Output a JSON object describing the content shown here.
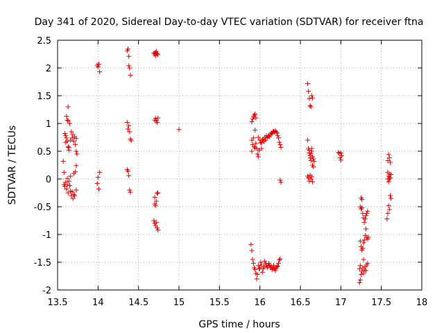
{
  "chart_data": {
    "type": "scatter",
    "title": "Day 341 of 2020, Sidereal Day-to-day VTEC variation (SDTVAR) for receiver ftna",
    "xlabel": "GPS time / hours",
    "ylabel": "SDTVAR / TECUs",
    "xlim": [
      13.5,
      18
    ],
    "ylim": [
      -2,
      2.5
    ],
    "xticks": [
      13.5,
      14,
      14.5,
      15,
      15.5,
      16,
      16.5,
      17,
      17.5,
      18
    ],
    "xtick_labels": [
      "13.5",
      "14",
      "14.5",
      "15",
      "15.5",
      "16",
      "16.5",
      "17",
      "17.5",
      "18"
    ],
    "yticks": [
      -2,
      -1.5,
      -1,
      -0.5,
      0,
      0.5,
      1,
      1.5,
      2,
      2.5
    ],
    "ytick_labels": [
      "-2",
      "-1.5",
      "-1",
      "-0.5",
      "0",
      "0.5",
      "1",
      "1.5",
      "2",
      "2.5"
    ],
    "grid": true,
    "marker": "+",
    "color": "#e00000",
    "series": [
      {
        "name": "ftna",
        "points": [
          [
            13.57,
            0.32
          ],
          [
            13.58,
            0.12
          ],
          [
            13.59,
            0.82
          ],
          [
            13.6,
            0.78
          ],
          [
            13.6,
            0.66
          ],
          [
            13.61,
            0.74
          ],
          [
            13.61,
            1.13
          ],
          [
            13.62,
            1.06
          ],
          [
            13.62,
            0.68
          ],
          [
            13.63,
            1.3
          ],
          [
            13.63,
            1.05
          ],
          [
            13.63,
            0.58
          ],
          [
            13.64,
            0.52
          ],
          [
            13.64,
            0.57
          ],
          [
            13.65,
            1.0
          ],
          [
            13.66,
            0.7
          ],
          [
            13.67,
            0.85
          ],
          [
            13.68,
            0.74
          ],
          [
            13.69,
            0.8
          ],
          [
            13.7,
            0.68
          ],
          [
            13.71,
            0.76
          ],
          [
            13.72,
            0.62
          ],
          [
            13.73,
            0.73
          ],
          [
            13.73,
            0.5
          ],
          [
            13.74,
            0.45
          ],
          [
            13.58,
            -0.1
          ],
          [
            13.59,
            -0.13
          ],
          [
            13.6,
            -0.06
          ],
          [
            13.61,
            -0.18
          ],
          [
            13.62,
            -0.1
          ],
          [
            13.62,
            0.01
          ],
          [
            13.63,
            -0.25
          ],
          [
            13.64,
            -0.04
          ],
          [
            13.65,
            -0.12
          ],
          [
            13.66,
            -0.22
          ],
          [
            13.66,
            0.05
          ],
          [
            13.67,
            -0.3
          ],
          [
            13.68,
            -0.23
          ],
          [
            13.69,
            -0.35
          ],
          [
            13.7,
            -0.28
          ],
          [
            13.7,
            0.1
          ],
          [
            13.71,
            -0.3
          ],
          [
            13.72,
            0.13
          ],
          [
            13.73,
            0.24
          ],
          [
            13.73,
            -0.2
          ],
          [
            13.99,
            2.05
          ],
          [
            14.0,
            2.02
          ],
          [
            14.01,
            2.07
          ],
          [
            14.02,
            1.93
          ],
          [
            13.99,
            -0.08
          ],
          [
            14.0,
            0.03
          ],
          [
            14.01,
            -0.18
          ],
          [
            14.02,
            0.12
          ],
          [
            14.36,
            2.31
          ],
          [
            14.37,
            2.34
          ],
          [
            14.38,
            2.21
          ],
          [
            14.38,
            2.04
          ],
          [
            14.39,
            2.0
          ],
          [
            14.4,
            1.87
          ],
          [
            14.36,
            1.02
          ],
          [
            14.37,
            0.9
          ],
          [
            14.38,
            0.96
          ],
          [
            14.39,
            0.85
          ],
          [
            14.4,
            0.72
          ],
          [
            14.41,
            0.69
          ],
          [
            14.36,
            0.17
          ],
          [
            14.37,
            0.14
          ],
          [
            14.38,
            0.06
          ],
          [
            14.39,
            -0.2
          ],
          [
            14.4,
            -0.24
          ],
          [
            14.69,
            2.27
          ],
          [
            14.7,
            2.25
          ],
          [
            14.71,
            2.22
          ],
          [
            14.71,
            2.28
          ],
          [
            14.72,
            2.3
          ],
          [
            14.73,
            2.26
          ],
          [
            14.74,
            2.24
          ],
          [
            14.7,
            1.06
          ],
          [
            14.71,
            1.09
          ],
          [
            14.72,
            1.05
          ],
          [
            14.73,
            1.02
          ],
          [
            14.74,
            1.1
          ],
          [
            14.7,
            -0.33
          ],
          [
            14.7,
            -0.45
          ],
          [
            14.71,
            -0.48
          ],
          [
            14.72,
            -0.4
          ],
          [
            14.73,
            -0.26
          ],
          [
            14.74,
            -0.25
          ],
          [
            14.69,
            -0.75
          ],
          [
            14.7,
            -0.8
          ],
          [
            14.71,
            -0.84
          ],
          [
            14.72,
            -0.78
          ],
          [
            14.73,
            -0.88
          ],
          [
            14.74,
            -0.92
          ],
          [
            15.0,
            0.89
          ],
          [
            15.9,
            1.03
          ],
          [
            15.91,
            1.08
          ],
          [
            15.92,
            1.12
          ],
          [
            15.93,
            1.15
          ],
          [
            15.94,
            1.17
          ],
          [
            15.95,
            1.1
          ],
          [
            15.9,
            0.7
          ],
          [
            15.91,
            0.62
          ],
          [
            15.92,
            0.74
          ],
          [
            15.93,
            0.58
          ],
          [
            15.94,
            0.56
          ],
          [
            15.95,
            0.64
          ],
          [
            15.96,
            0.55
          ],
          [
            15.97,
            0.45
          ],
          [
            15.98,
            0.4
          ],
          [
            15.99,
            0.52
          ],
          [
            16.0,
            0.7
          ],
          [
            16.01,
            0.65
          ],
          [
            16.02,
            0.66
          ],
          [
            16.03,
            0.7
          ],
          [
            16.04,
            0.72
          ],
          [
            16.05,
            0.68
          ],
          [
            16.06,
            0.75
          ],
          [
            16.07,
            0.7
          ],
          [
            16.08,
            0.78
          ],
          [
            16.09,
            0.74
          ],
          [
            16.1,
            0.77
          ],
          [
            16.11,
            0.78
          ],
          [
            16.12,
            0.76
          ],
          [
            16.13,
            0.8
          ],
          [
            16.14,
            0.83
          ],
          [
            16.15,
            0.82
          ],
          [
            16.16,
            0.85
          ],
          [
            16.17,
            0.86
          ],
          [
            16.18,
            0.84
          ],
          [
            16.19,
            0.87
          ],
          [
            16.2,
            0.85
          ],
          [
            16.21,
            0.83
          ],
          [
            16.22,
            0.78
          ],
          [
            16.23,
            0.74
          ],
          [
            16.24,
            0.66
          ],
          [
            16.25,
            0.62
          ],
          [
            16.26,
            0.57
          ],
          [
            16.25,
            -0.02
          ],
          [
            16.26,
            -0.06
          ],
          [
            15.94,
            0.88
          ],
          [
            15.98,
            0.75
          ],
          [
            16.02,
            0.55
          ],
          [
            15.9,
            0.5
          ],
          [
            15.89,
            -1.18
          ],
          [
            15.9,
            -1.29
          ],
          [
            15.91,
            -1.45
          ],
          [
            15.92,
            -1.52
          ],
          [
            15.93,
            -1.6
          ],
          [
            15.94,
            -1.63
          ],
          [
            15.95,
            -1.7
          ],
          [
            15.96,
            -1.8
          ],
          [
            15.97,
            -1.72
          ],
          [
            15.98,
            -1.56
          ],
          [
            15.99,
            -1.62
          ],
          [
            16.0,
            -1.6
          ],
          [
            16.01,
            -1.5
          ],
          [
            16.02,
            -1.55
          ],
          [
            16.03,
            -1.68
          ],
          [
            16.04,
            -1.62
          ],
          [
            16.05,
            -1.58
          ],
          [
            16.06,
            -1.48
          ],
          [
            16.07,
            -1.52
          ],
          [
            16.08,
            -1.55
          ],
          [
            16.09,
            -1.6
          ],
          [
            16.1,
            -1.57
          ],
          [
            16.11,
            -1.52
          ],
          [
            16.12,
            -1.55
          ],
          [
            16.13,
            -1.6
          ],
          [
            16.14,
            -1.58
          ],
          [
            16.15,
            -1.63
          ],
          [
            16.16,
            -1.61
          ],
          [
            16.17,
            -1.56
          ],
          [
            16.18,
            -1.62
          ],
          [
            16.19,
            -1.65
          ],
          [
            16.2,
            -1.6
          ],
          [
            16.21,
            -1.58
          ],
          [
            16.22,
            -1.57
          ],
          [
            16.23,
            -1.52
          ],
          [
            16.24,
            -1.46
          ],
          [
            16.25,
            -1.44
          ],
          [
            16.59,
            1.72
          ],
          [
            16.6,
            1.58
          ],
          [
            16.61,
            1.45
          ],
          [
            16.62,
            1.32
          ],
          [
            16.63,
            1.3
          ],
          [
            16.64,
            1.5
          ],
          [
            16.65,
            1.46
          ],
          [
            16.59,
            0.7
          ],
          [
            16.6,
            0.55
          ],
          [
            16.61,
            0.52
          ],
          [
            16.61,
            0.47
          ],
          [
            16.62,
            0.42
          ],
          [
            16.62,
            0.38
          ],
          [
            16.63,
            0.33
          ],
          [
            16.63,
            0.46
          ],
          [
            16.64,
            0.55
          ],
          [
            16.64,
            0.5
          ],
          [
            16.65,
            0.4
          ],
          [
            16.65,
            0.25
          ],
          [
            16.66,
            0.22
          ],
          [
            16.66,
            0.36
          ],
          [
            16.67,
            0.32
          ],
          [
            16.59,
            0.05
          ],
          [
            16.6,
            0.02
          ],
          [
            16.61,
            -0.04
          ],
          [
            16.62,
            0.07
          ],
          [
            16.63,
            0.0
          ],
          [
            16.64,
            0.04
          ],
          [
            16.65,
            -0.05
          ],
          [
            16.97,
            0.48
          ],
          [
            16.98,
            0.46
          ],
          [
            16.99,
            0.38
          ],
          [
            17.0,
            0.34
          ],
          [
            17.01,
            0.42
          ],
          [
            17.0,
            0.47
          ],
          [
            17.25,
            -0.34
          ],
          [
            17.26,
            -0.37
          ],
          [
            17.24,
            -0.5
          ],
          [
            17.25,
            -0.54
          ],
          [
            17.26,
            -0.52
          ],
          [
            17.27,
            -0.62
          ],
          [
            17.28,
            -0.7
          ],
          [
            17.29,
            -0.78
          ],
          [
            17.3,
            -0.72
          ],
          [
            17.31,
            -0.66
          ],
          [
            17.32,
            -0.62
          ],
          [
            17.33,
            -0.58
          ],
          [
            17.31,
            -0.9
          ],
          [
            17.32,
            -1.05
          ],
          [
            17.33,
            -1.08
          ],
          [
            17.34,
            -1.05
          ],
          [
            17.24,
            -1.12
          ],
          [
            17.25,
            -1.22
          ],
          [
            17.26,
            -1.28
          ],
          [
            17.27,
            -1.25
          ],
          [
            17.28,
            -1.15
          ],
          [
            17.29,
            -1.1
          ],
          [
            17.3,
            -1.02
          ],
          [
            17.23,
            -1.62
          ],
          [
            17.24,
            -1.56
          ],
          [
            17.25,
            -1.72
          ],
          [
            17.26,
            -1.66
          ],
          [
            17.27,
            -1.6
          ],
          [
            17.28,
            -1.7
          ],
          [
            17.29,
            -1.64
          ],
          [
            17.3,
            -1.58
          ],
          [
            17.31,
            -1.65
          ],
          [
            17.32,
            -1.55
          ],
          [
            17.33,
            -1.52
          ],
          [
            17.23,
            -1.87
          ],
          [
            17.24,
            -1.82
          ],
          [
            17.28,
            -1.45
          ],
          [
            17.58,
            0.33
          ],
          [
            17.59,
            0.44
          ],
          [
            17.6,
            0.38
          ],
          [
            17.61,
            0.3
          ],
          [
            17.58,
            0.12
          ],
          [
            17.59,
            0.05
          ],
          [
            17.6,
            0.09
          ],
          [
            17.61,
            0.02
          ],
          [
            17.62,
            0.08
          ],
          [
            17.58,
            0.0
          ],
          [
            17.59,
            -0.05
          ],
          [
            17.6,
            0.0
          ],
          [
            17.61,
            -0.3
          ],
          [
            17.62,
            -0.35
          ],
          [
            17.59,
            -0.48
          ],
          [
            17.6,
            -0.55
          ],
          [
            17.58,
            -0.62
          ],
          [
            17.57,
            -0.72
          ]
        ]
      }
    ]
  }
}
